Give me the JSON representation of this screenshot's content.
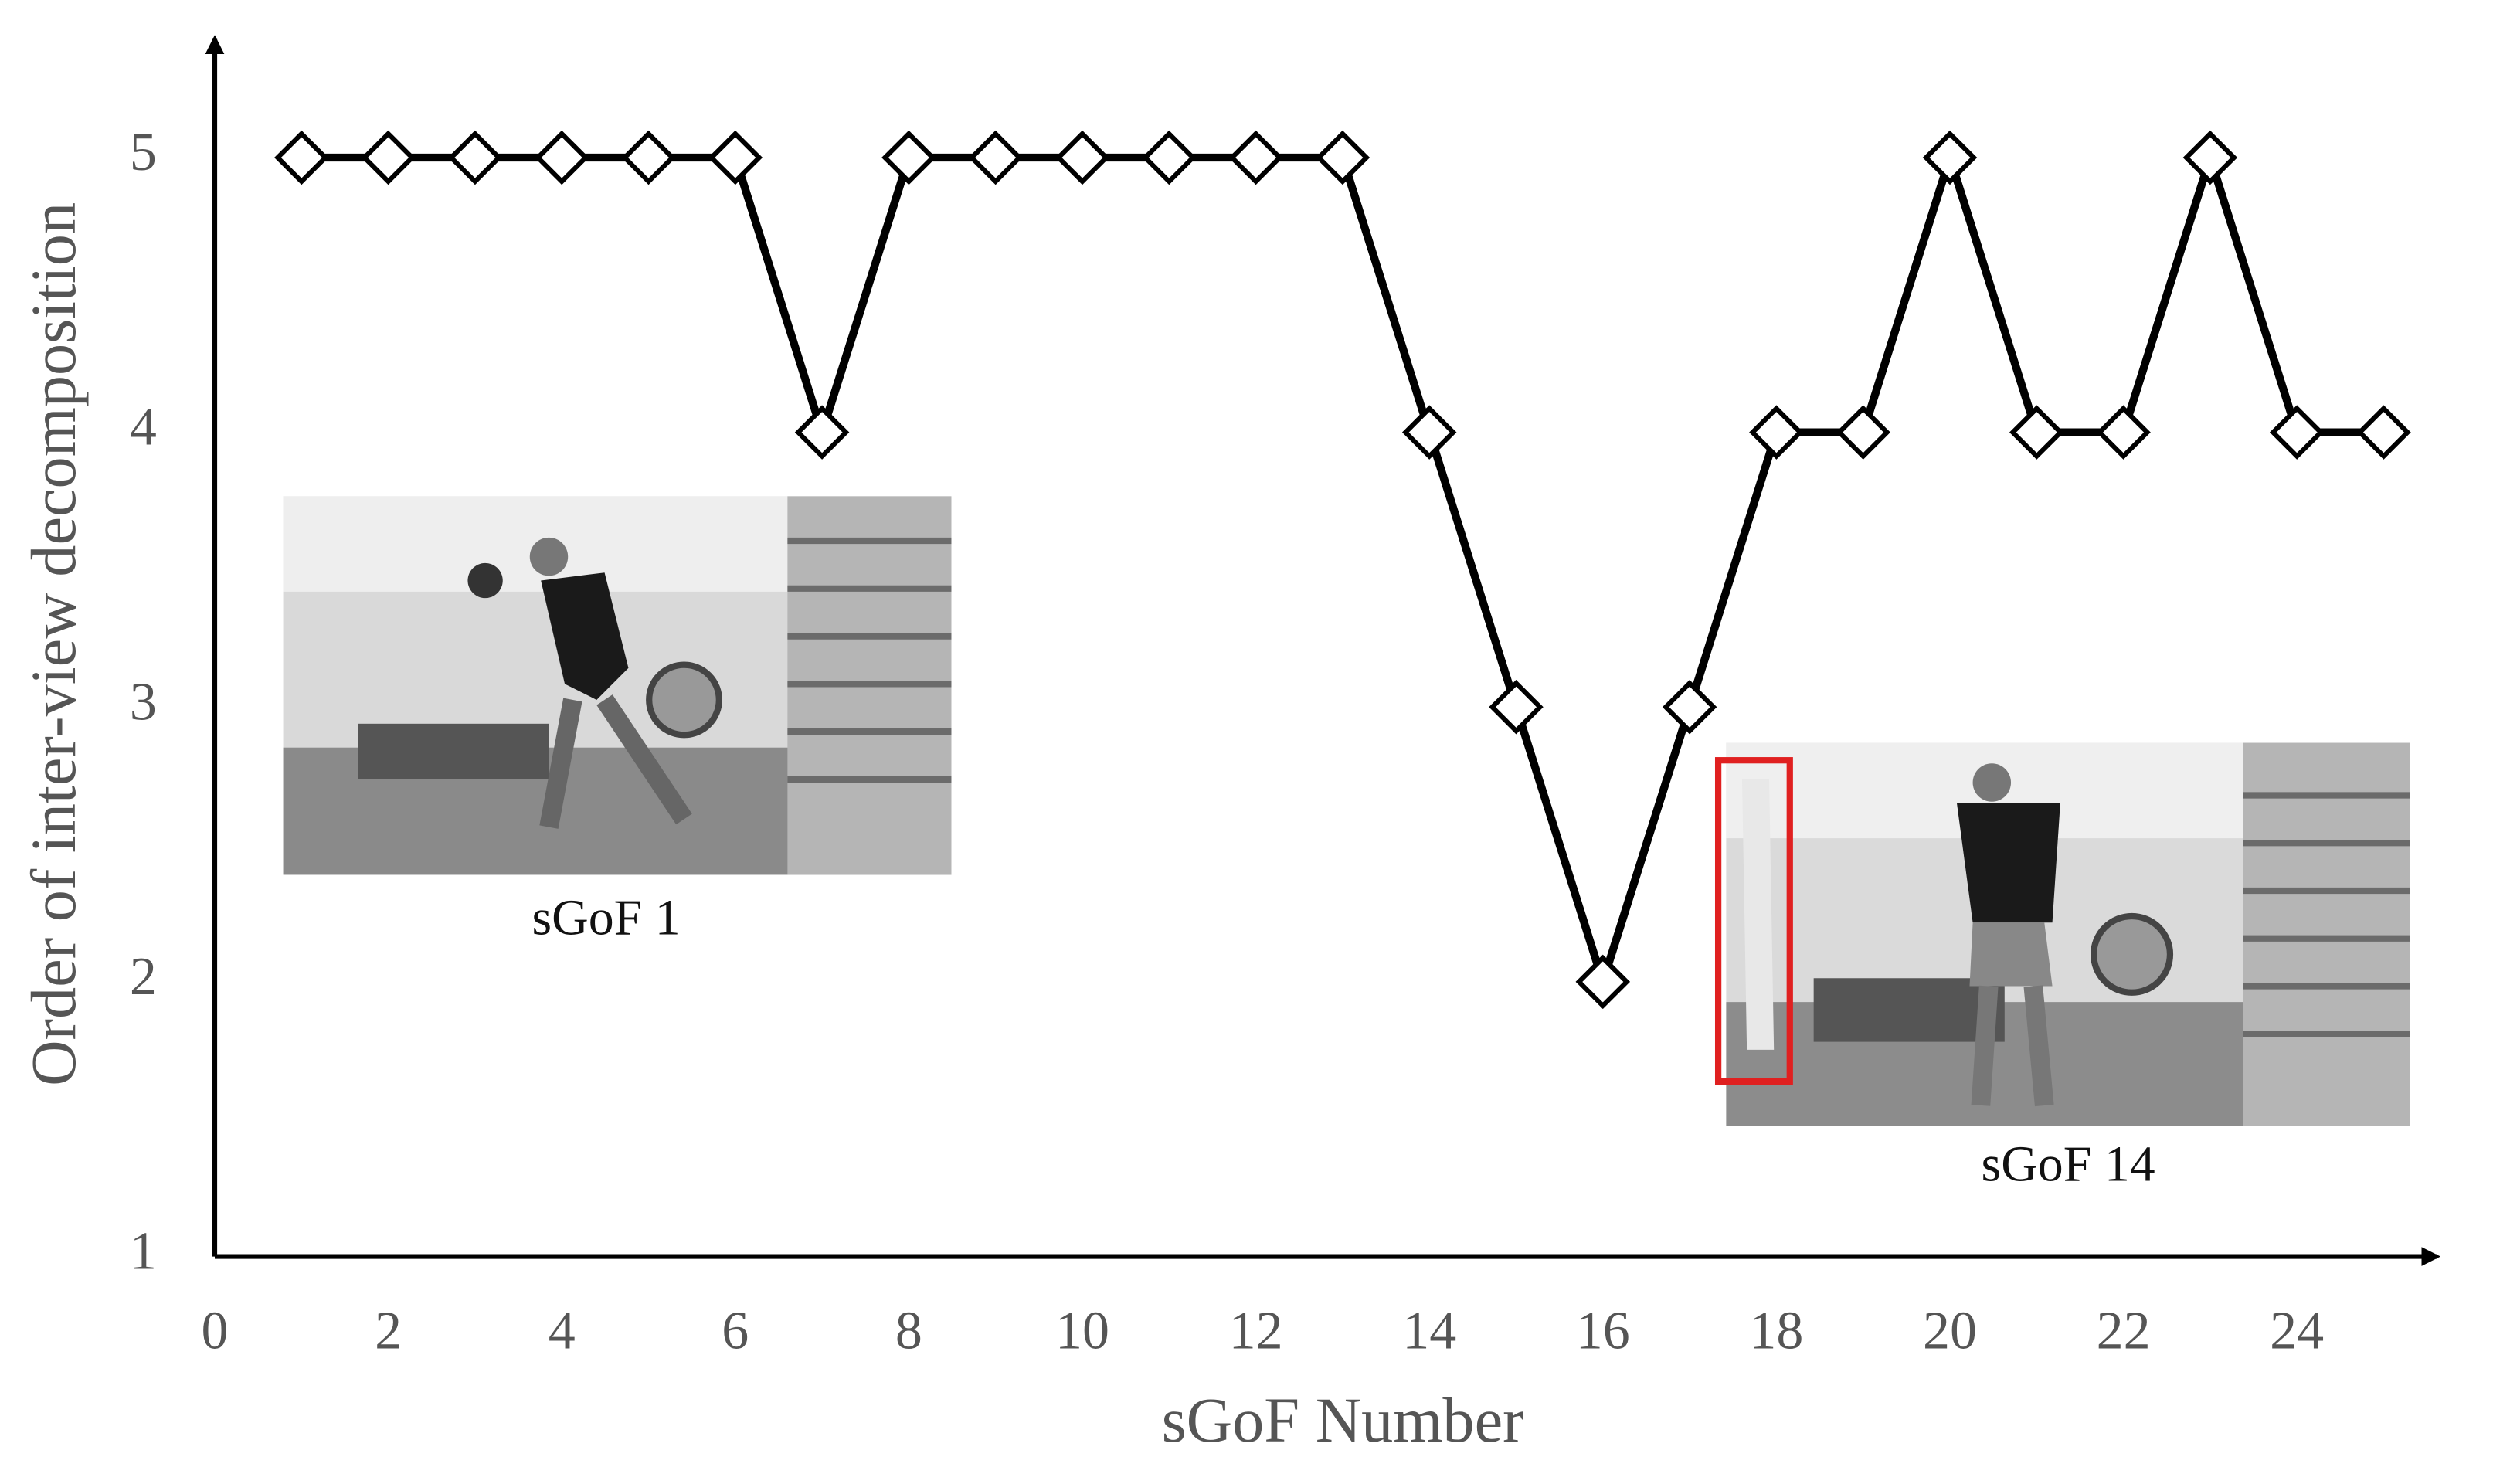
{
  "chart_data": {
    "type": "line",
    "x": [
      1,
      2,
      3,
      4,
      5,
      6,
      7,
      8,
      9,
      10,
      11,
      12,
      13,
      14,
      15,
      16,
      17,
      18,
      19,
      20,
      21,
      22,
      23,
      24,
      25
    ],
    "values": [
      5,
      5,
      5,
      5,
      5,
      5,
      4,
      5,
      5,
      5,
      5,
      5,
      5,
      4,
      3,
      2,
      3,
      4,
      4,
      5,
      4,
      4,
      5,
      4,
      4
    ],
    "color": "#000000",
    "x_label": "sGoF Number",
    "y_label": "Order of inter-view decomposition",
    "xlim": [
      0,
      25.6
    ],
    "ylim": [
      1,
      5.4
    ],
    "xticks": [
      0,
      2,
      4,
      6,
      8,
      10,
      12,
      14,
      16,
      18,
      20,
      22,
      24
    ],
    "yticks": [
      1,
      2,
      3,
      4,
      5
    ],
    "grid": false,
    "annotations": [
      "sGoF 1",
      "sGoF 14"
    ]
  }
}
